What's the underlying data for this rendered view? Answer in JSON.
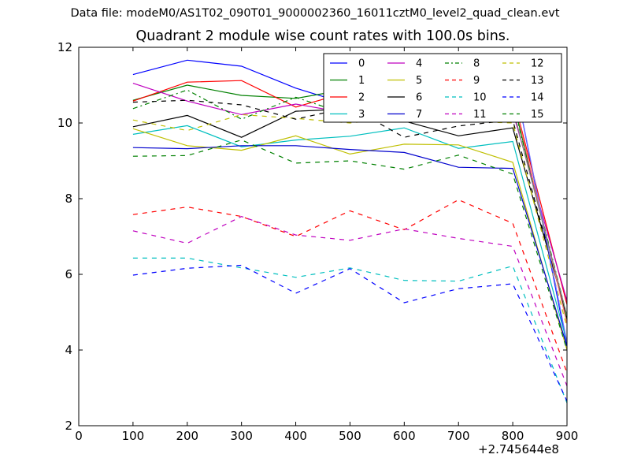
{
  "figure": {
    "suptitle": "Data file: modeM0/AS1T02_090T01_9000002360_16011cztM0_level2_quad_clean.evt",
    "offset_label": "+2.745644e8"
  },
  "chart_data": {
    "type": "line",
    "title": "Quadrant 2 module wise count rates with 100.0s bins.",
    "xlabel": "",
    "ylabel": "",
    "xlim": [
      0,
      900
    ],
    "ylim": [
      2,
      12
    ],
    "xticks": [
      0,
      100,
      200,
      300,
      400,
      500,
      600,
      700,
      800,
      900
    ],
    "yticks": [
      2,
      4,
      6,
      8,
      10,
      12
    ],
    "x": [
      100,
      200,
      300,
      400,
      500,
      600,
      700,
      800,
      900
    ],
    "legend_position": "top-right",
    "legend_columns": 4,
    "series": [
      {
        "name": "0",
        "color": "#0000ff",
        "dash": "solid",
        "values": [
          11.28,
          11.66,
          11.5,
          10.92,
          10.48,
          10.83,
          11.52,
          11.38,
          4.1
        ]
      },
      {
        "name": "1",
        "color": "#008000",
        "dash": "solid",
        "values": [
          10.6,
          11.0,
          10.73,
          10.65,
          10.9,
          10.31,
          10.37,
          10.62,
          4.8
        ]
      },
      {
        "name": "2",
        "color": "#ff0000",
        "dash": "solid",
        "values": [
          10.58,
          11.08,
          11.12,
          10.42,
          10.83,
          10.52,
          10.7,
          10.73,
          5.2
        ]
      },
      {
        "name": "3",
        "color": "#00bfbf",
        "dash": "solid",
        "values": [
          9.7,
          9.93,
          9.37,
          9.55,
          9.65,
          9.87,
          9.33,
          9.51,
          4.2
        ]
      },
      {
        "name": "4",
        "color": "#bf00bf",
        "dash": "solid",
        "values": [
          11.05,
          10.58,
          10.22,
          10.5,
          10.25,
          10.55,
          10.47,
          10.3,
          5.3
        ]
      },
      {
        "name": "5",
        "color": "#bfbf00",
        "dash": "solid",
        "values": [
          9.85,
          9.4,
          9.28,
          9.66,
          9.18,
          9.44,
          9.42,
          8.96,
          4.0
        ]
      },
      {
        "name": "6",
        "color": "#000000",
        "dash": "solid",
        "values": [
          9.9,
          10.2,
          9.62,
          10.31,
          10.37,
          10.05,
          9.66,
          9.87,
          4.9
        ]
      },
      {
        "name": "7",
        "color": "#0000cd",
        "dash": "solid",
        "values": [
          9.35,
          9.32,
          9.4,
          9.4,
          9.3,
          9.22,
          8.83,
          8.8,
          4.1
        ]
      },
      {
        "name": "8",
        "color": "#008000",
        "dash": "dashdot",
        "values": [
          10.38,
          10.87,
          10.1,
          10.68,
          10.2,
          10.22,
          10.05,
          10.55,
          4.9
        ]
      },
      {
        "name": "9",
        "color": "#ff0000",
        "dash": "dashed",
        "values": [
          7.58,
          7.78,
          7.53,
          7.0,
          7.68,
          7.18,
          7.97,
          7.35,
          3.4
        ]
      },
      {
        "name": "10",
        "color": "#00bfbf",
        "dash": "dashed",
        "values": [
          6.43,
          6.43,
          6.17,
          5.92,
          6.17,
          5.84,
          5.82,
          6.22,
          2.6
        ]
      },
      {
        "name": "11",
        "color": "#bf00bf",
        "dash": "dashed",
        "values": [
          7.15,
          6.82,
          7.53,
          7.04,
          6.9,
          7.2,
          6.95,
          6.74,
          3.05
        ]
      },
      {
        "name": "12",
        "color": "#bfbf00",
        "dash": "dashed",
        "values": [
          10.08,
          9.8,
          10.22,
          10.12,
          10.0,
          10.15,
          10.05,
          10.0,
          4.6
        ]
      },
      {
        "name": "13",
        "color": "#000000",
        "dash": "dashed",
        "values": [
          10.55,
          10.6,
          10.48,
          10.1,
          10.42,
          9.62,
          9.92,
          10.08,
          4.85
        ]
      },
      {
        "name": "14",
        "color": "#0000ff",
        "dash": "dashed",
        "values": [
          5.98,
          6.16,
          6.24,
          5.5,
          6.15,
          5.25,
          5.62,
          5.75,
          2.65
        ]
      },
      {
        "name": "15",
        "color": "#008000",
        "dash": "dashed",
        "values": [
          9.12,
          9.14,
          9.55,
          8.94,
          9.0,
          8.78,
          9.15,
          8.65,
          4.0
        ]
      },
      {
        "name": "",
        "color": "#ff7070",
        "dash": "solid",
        "values": [
          null,
          null,
          null,
          null,
          10.88,
          11.15,
          11.08,
          10.75,
          4.7
        ]
      },
      {
        "name": "",
        "color": "#7070ff",
        "dash": "solid",
        "values": [
          null,
          null,
          null,
          null,
          null,
          null,
          11.52,
          11.38,
          4.2
        ]
      },
      {
        "name": "",
        "color": "#808080",
        "dash": "solid",
        "values": [
          null,
          null,
          null,
          null,
          10.3,
          10.62,
          10.4,
          10.4,
          4.9
        ]
      }
    ]
  }
}
